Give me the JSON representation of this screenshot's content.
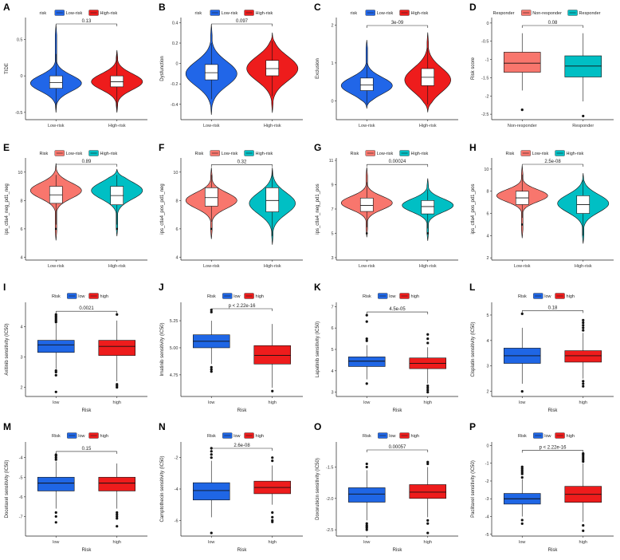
{
  "chart_data": [
    {
      "panel": "A",
      "type": "violin",
      "legend": {
        "title": "risk",
        "entries": [
          "Low-risk",
          "High-risk"
        ],
        "colors": [
          "#2166e8",
          "#ee1c1c"
        ]
      },
      "ylabel": "TIDE",
      "xlabel": "",
      "categories": [
        "Low-risk",
        "High-risk"
      ],
      "ylim": [
        -0.6,
        0.8
      ],
      "yticks": [
        -0.5,
        0,
        0.5
      ],
      "pvalue": "0.13",
      "box_style": "white",
      "groups": [
        {
          "q1": -0.17,
          "med": -0.09,
          "q3": 0.0,
          "wmin": -0.45,
          "wmax": 0.3,
          "vmin": -0.5,
          "vmax": 0.7,
          "mode": -0.1,
          "wid": 1.0,
          "sd": 0.11
        },
        {
          "q1": -0.15,
          "med": -0.08,
          "q3": 0.0,
          "wmin": -0.45,
          "wmax": 0.3,
          "vmin": -0.5,
          "vmax": 0.35,
          "mode": -0.08,
          "wid": 1.0,
          "sd": 0.11
        }
      ]
    },
    {
      "panel": "B",
      "type": "violin",
      "legend": {
        "title": "risk",
        "entries": [
          "Low-risk",
          "High-risk"
        ],
        "colors": [
          "#2166e8",
          "#ee1c1c"
        ]
      },
      "ylabel": "Dysfunction",
      "xlabel": "",
      "categories": [
        "Low-risk",
        "High-risk"
      ],
      "ylim": [
        -0.55,
        0.45
      ],
      "yticks": [
        -0.4,
        -0.2,
        0,
        0.2,
        0.4
      ],
      "pvalue": "0.097",
      "box_style": "white",
      "groups": [
        {
          "q1": -0.16,
          "med": -0.09,
          "q3": -0.01,
          "wmin": -0.35,
          "wmax": 0.2,
          "vmin": -0.5,
          "vmax": 0.38,
          "mode": -0.1,
          "wid": 1.0,
          "sd": 0.12
        },
        {
          "q1": -0.12,
          "med": -0.05,
          "q3": 0.03,
          "wmin": -0.32,
          "wmax": 0.22,
          "vmin": -0.48,
          "vmax": 0.3,
          "mode": -0.05,
          "wid": 1.0,
          "sd": 0.12
        }
      ]
    },
    {
      "panel": "C",
      "type": "violin",
      "legend": {
        "title": "risk",
        "entries": [
          "Low-risk",
          "High-risk"
        ],
        "colors": [
          "#2166e8",
          "#ee1c1c"
        ]
      },
      "ylabel": "Exclusion",
      "xlabel": "",
      "categories": [
        "Low-risk",
        "High-risk"
      ],
      "ylim": [
        -0.5,
        2.2
      ],
      "yticks": [
        0,
        1,
        2
      ],
      "pvalue": "3e-09",
      "box_style": "white",
      "groups": [
        {
          "q1": 0.27,
          "med": 0.42,
          "q3": 0.6,
          "wmin": -0.1,
          "wmax": 1.0,
          "vmin": -0.2,
          "vmax": 1.6,
          "mode": 0.4,
          "wid": 1.0,
          "sd": 0.22
        },
        {
          "q1": 0.4,
          "med": 0.62,
          "q3": 0.85,
          "wmin": -0.1,
          "wmax": 1.4,
          "vmin": -0.3,
          "vmax": 1.8,
          "mode": 0.55,
          "wid": 0.9,
          "sd": 0.32
        }
      ]
    },
    {
      "panel": "D",
      "type": "box",
      "legend": {
        "title": "Responder",
        "entries": [
          "Non-responder",
          "Responder"
        ],
        "colors": [
          "#f8766d",
          "#00bfc4"
        ]
      },
      "ylabel": "Risk score",
      "xlabel": "",
      "categories": [
        "Non-responder",
        "Responder"
      ],
      "ylim": [
        -2.65,
        0.15
      ],
      "yticks": [
        0,
        -0.5,
        -1,
        -1.5,
        -2,
        -2.5
      ],
      "pvalue": "0.08",
      "groups": [
        {
          "q1": -1.35,
          "med": -1.1,
          "q3": -0.8,
          "wmin": -1.85,
          "wmax": -0.28,
          "outliers": [
            -2.38
          ]
        },
        {
          "q1": -1.48,
          "med": -1.18,
          "q3": -0.9,
          "wmin": -2.15,
          "wmax": -0.28,
          "outliers": [
            -2.55
          ]
        }
      ]
    },
    {
      "panel": "E",
      "type": "violin",
      "legend": {
        "title": "Risk",
        "entries": [
          "Low-risk",
          "High-risk"
        ],
        "colors": [
          "#f8766d",
          "#00bfc4"
        ]
      },
      "ylabel": "ips_ctla4_neg_pd1_neg",
      "xlabel": "",
      "categories": [
        "Low-risk",
        "High-risk"
      ],
      "ylim": [
        3.8,
        11
      ],
      "yticks": [
        4,
        6,
        8,
        10
      ],
      "pvalue": "0.89",
      "box_style": "white",
      "groups": [
        {
          "q1": 7.8,
          "med": 8.4,
          "q3": 9.0,
          "wmin": 6.3,
          "wmax": 9.8,
          "vmin": 5.2,
          "vmax": 10.6,
          "mode": 8.7,
          "wid": 1.0,
          "sd": 0.55,
          "outliers": [
            6.0
          ]
        },
        {
          "q1": 7.7,
          "med": 8.35,
          "q3": 9.0,
          "wmin": 6.3,
          "wmax": 9.8,
          "vmin": 5.5,
          "vmax": 10.2,
          "mode": 8.7,
          "wid": 1.0,
          "sd": 0.6,
          "outliers": [
            6.0
          ]
        }
      ]
    },
    {
      "panel": "F",
      "type": "violin",
      "legend": {
        "title": "Risk",
        "entries": [
          "Low-risk",
          "High-risk"
        ],
        "colors": [
          "#f8766d",
          "#00bfc4"
        ]
      },
      "ylabel": "ips_ctla4_pos_pd1_neg",
      "xlabel": "",
      "categories": [
        "Low-risk",
        "High-risk"
      ],
      "ylim": [
        3.8,
        11
      ],
      "yticks": [
        4,
        6,
        8,
        10
      ],
      "pvalue": "0.32",
      "box_style": "white",
      "groups": [
        {
          "q1": 7.6,
          "med": 8.2,
          "q3": 8.9,
          "wmin": 6.5,
          "wmax": 9.8,
          "vmin": 5.3,
          "vmax": 10.3,
          "mode": 8.0,
          "wid": 1.0,
          "sd": 0.55,
          "outliers": [
            6.0
          ]
        },
        {
          "q1": 7.2,
          "med": 8.0,
          "q3": 8.9,
          "wmin": 5.5,
          "wmax": 10.2,
          "vmin": 4.9,
          "vmax": 10.3,
          "mode": 7.8,
          "wid": 0.9,
          "sd": 0.75
        }
      ]
    },
    {
      "panel": "G",
      "type": "violin",
      "legend": {
        "title": "Risk",
        "entries": [
          "Low-risk",
          "High-risk"
        ],
        "colors": [
          "#f8766d",
          "#00bfc4"
        ]
      },
      "ylabel": "ips_ctla4_neg_pd1_pos",
      "xlabel": "",
      "categories": [
        "Low-risk",
        "High-risk"
      ],
      "ylim": [
        2.8,
        11.2
      ],
      "yticks": [
        3,
        5,
        7,
        9,
        11
      ],
      "pvalue": "0.00024",
      "box_style": "white",
      "groups": [
        {
          "q1": 6.8,
          "med": 7.3,
          "q3": 7.9,
          "wmin": 5.5,
          "wmax": 9.2,
          "vmin": 4.7,
          "vmax": 10.4,
          "mode": 7.5,
          "wid": 1.0,
          "sd": 0.55,
          "outliers": [
            5.0
          ]
        },
        {
          "q1": 6.6,
          "med": 7.2,
          "q3": 7.7,
          "wmin": 5.4,
          "wmax": 8.6,
          "vmin": 4.4,
          "vmax": 9.5,
          "mode": 7.3,
          "wid": 1.0,
          "sd": 0.55,
          "outliers": [
            5.0
          ]
        }
      ]
    },
    {
      "panel": "H",
      "type": "violin",
      "legend": {
        "title": "Risk",
        "entries": [
          "Low-risk",
          "High-risk"
        ],
        "colors": [
          "#f8766d",
          "#00bfc4"
        ]
      },
      "ylabel": "ips_ctla4_pos_pd1_pos",
      "xlabel": "",
      "categories": [
        "Low-risk",
        "High-risk"
      ],
      "ylim": [
        1.8,
        11
      ],
      "yticks": [
        2,
        4,
        6,
        8,
        10
      ],
      "pvalue": "2.5e-08",
      "box_style": "white",
      "groups": [
        {
          "q1": 6.8,
          "med": 7.4,
          "q3": 8.0,
          "wmin": 5.6,
          "wmax": 9.5,
          "vmin": 3.8,
          "vmax": 10.3,
          "mode": 7.6,
          "wid": 1.0,
          "sd": 0.55,
          "outliers": [
            5.0
          ]
        },
        {
          "q1": 6.0,
          "med": 6.8,
          "q3": 7.6,
          "wmin": 4.0,
          "wmax": 9.0,
          "vmin": 3.3,
          "vmax": 9.6,
          "mode": 6.9,
          "wid": 1.0,
          "sd": 0.8
        }
      ]
    },
    {
      "panel": "I",
      "type": "box",
      "legend": {
        "title": "Risk",
        "entries": [
          "low",
          "high"
        ],
        "colors": [
          "#1f66e5",
          "#ee1c1c"
        ]
      },
      "ylabel": "Axitinib sensitivity (IC50)",
      "xlabel": "Risk",
      "categories": [
        "low",
        "high"
      ],
      "ylim": [
        1.7,
        4.8
      ],
      "yticks": [
        2,
        3,
        4
      ],
      "pvalue": "0.0021",
      "groups": [
        {
          "q1": 3.15,
          "med": 3.4,
          "q3": 3.55,
          "wmin": 2.6,
          "wmax": 4.1,
          "outliers": [
            4.15,
            4.2,
            4.25,
            4.3,
            4.35,
            4.4,
            2.55,
            2.5,
            2.4,
            1.85
          ]
        },
        {
          "q1": 3.05,
          "med": 3.35,
          "q3": 3.55,
          "wmin": 2.2,
          "wmax": 4.2,
          "outliers": [
            2.1,
            2.05,
            2.0,
            4.4
          ]
        }
      ]
    },
    {
      "panel": "J",
      "type": "box",
      "legend": {
        "title": "Risk",
        "entries": [
          "low",
          "high"
        ],
        "colors": [
          "#1f66e5",
          "#ee1c1c"
        ]
      },
      "ylabel": "Imatinib sensitivity (IC50)",
      "xlabel": "Risk",
      "categories": [
        "low",
        "high"
      ],
      "ylim": [
        4.55,
        5.42
      ],
      "yticks": [
        4.75,
        5.0,
        5.25
      ],
      "ytick_labels": [
        "4.75",
        "5.00",
        "5.25"
      ],
      "pvalue": "p < 2.22e-16",
      "groups": [
        {
          "q1": 5.0,
          "med": 5.06,
          "q3": 5.12,
          "wmin": 4.85,
          "wmax": 5.25,
          "outliers": [
            4.82,
            4.8,
            4.78,
            5.33,
            5.35
          ]
        },
        {
          "q1": 4.85,
          "med": 4.93,
          "q3": 5.02,
          "wmin": 4.63,
          "wmax": 5.22,
          "outliers": [
            4.6
          ]
        }
      ]
    },
    {
      "panel": "K",
      "type": "box",
      "legend": {
        "title": "Risk",
        "entries": [
          "low",
          "high"
        ],
        "colors": [
          "#1f66e5",
          "#ee1c1c"
        ]
      },
      "ylabel": "Lapatinib sensitivity (IC50)",
      "xlabel": "Risk",
      "categories": [
        "low",
        "high"
      ],
      "ylim": [
        2.8,
        7.2
      ],
      "yticks": [
        3,
        4,
        5,
        6,
        7
      ],
      "pvalue": "4.5e-05",
      "groups": [
        {
          "q1": 4.2,
          "med": 4.45,
          "q3": 4.65,
          "wmin": 3.6,
          "wmax": 5.2,
          "outliers": [
            5.4,
            5.5,
            6.3,
            6.6,
            3.4
          ]
        },
        {
          "q1": 4.1,
          "med": 4.35,
          "q3": 4.6,
          "wmin": 3.4,
          "wmax": 5.1,
          "outliers": [
            3.3,
            3.2,
            3.1,
            3.0,
            5.3,
            5.5,
            5.7
          ]
        }
      ]
    },
    {
      "panel": "L",
      "type": "box",
      "legend": {
        "title": "Risk",
        "entries": [
          "low",
          "high"
        ],
        "colors": [
          "#1f66e5",
          "#ee1c1c"
        ]
      },
      "ylabel": "Cisplatin sensitivity (IC50)",
      "xlabel": "Risk",
      "categories": [
        "low",
        "high"
      ],
      "ylim": [
        1.8,
        5.5
      ],
      "yticks": [
        2,
        3,
        4,
        5
      ],
      "pvalue": "0.18",
      "groups": [
        {
          "q1": 3.1,
          "med": 3.4,
          "q3": 3.7,
          "wmin": 2.3,
          "wmax": 4.5,
          "outliers": [
            5.05,
            2.0
          ]
        },
        {
          "q1": 3.15,
          "med": 3.4,
          "q3": 3.6,
          "wmin": 2.5,
          "wmax": 4.3,
          "outliers": [
            4.4,
            4.5,
            4.6,
            4.7,
            4.8,
            2.4,
            2.3,
            2.2
          ]
        }
      ]
    },
    {
      "panel": "M",
      "type": "box",
      "legend": {
        "title": "Risk",
        "entries": [
          "low",
          "high"
        ],
        "colors": [
          "#1f66e5",
          "#ee1c1c"
        ]
      },
      "ylabel": "Docetaxel sensitivity (IC50)",
      "xlabel": "Risk",
      "categories": [
        "low",
        "high"
      ],
      "ylim": [
        -8.0,
        -3.2
      ],
      "yticks": [
        -4,
        -5,
        -6,
        -7
      ],
      "pvalue": "0.15",
      "groups": [
        {
          "q1": -5.7,
          "med": -5.3,
          "q3": -5.0,
          "wmin": -6.6,
          "wmax": -4.2,
          "outliers": [
            -4.1,
            -4.0,
            -3.9,
            -3.85,
            -6.8,
            -7.0,
            -7.3
          ]
        },
        {
          "q1": -5.7,
          "med": -5.3,
          "q3": -5.0,
          "wmin": -6.6,
          "wmax": -4.3,
          "outliers": [
            -6.8,
            -6.9,
            -7.0,
            -7.1,
            -7.5
          ]
        }
      ]
    },
    {
      "panel": "N",
      "type": "box",
      "legend": {
        "title": "Risk",
        "entries": [
          "low",
          "high"
        ],
        "colors": [
          "#1f66e5",
          "#ee1c1c"
        ]
      },
      "ylabel": "Camptothecin sensitivity (IC50)",
      "xlabel": "Risk",
      "categories": [
        "low",
        "high"
      ],
      "ylim": [
        -7.0,
        -1.0
      ],
      "yticks": [
        -2,
        -4,
        -6
      ],
      "pvalue": "2.6e-08",
      "groups": [
        {
          "q1": -4.7,
          "med": -4.1,
          "q3": -3.6,
          "wmin": -5.8,
          "wmax": -2.2,
          "outliers": [
            -2.0,
            -1.8,
            -1.6,
            -1.4,
            -6.8
          ]
        },
        {
          "q1": -4.3,
          "med": -3.9,
          "q3": -3.5,
          "wmin": -5.0,
          "wmax": -2.5,
          "outliers": [
            -2.2,
            -2.0,
            -5.5,
            -5.8,
            -6.0,
            -6.1
          ]
        }
      ]
    },
    {
      "panel": "O",
      "type": "box",
      "legend": {
        "title": "Risk",
        "entries": [
          "low",
          "high"
        ],
        "colors": [
          "#1f66e5",
          "#ee1c1c"
        ]
      },
      "ylabel": "Doxorubicin sensitivity (IC50)",
      "xlabel": "Risk",
      "categories": [
        "low",
        "high"
      ],
      "ylim": [
        -2.6,
        -1.1
      ],
      "yticks": [
        -1.5,
        -2.0,
        -2.5
      ],
      "ytick_labels": [
        "-1.5",
        "-2.0",
        "-2.5"
      ],
      "pvalue": "0.00057",
      "groups": [
        {
          "q1": -2.06,
          "med": -1.93,
          "q3": -1.83,
          "wmin": -2.35,
          "wmax": -1.55,
          "outliers": [
            -1.5,
            -1.45,
            -2.4,
            -2.43,
            -2.45,
            -2.47,
            -2.5
          ]
        },
        {
          "q1": -2.0,
          "med": -1.9,
          "q3": -1.78,
          "wmin": -2.3,
          "wmax": -1.5,
          "outliers": [
            -1.45,
            -1.42,
            -2.35,
            -2.4,
            -2.55
          ]
        }
      ]
    },
    {
      "panel": "P",
      "type": "box",
      "legend": {
        "title": "Risk",
        "entries": [
          "low",
          "high"
        ],
        "colors": [
          "#1f66e5",
          "#ee1c1c"
        ]
      },
      "ylabel": "Paclitaxel sensitivity (IC50)",
      "xlabel": "Risk",
      "categories": [
        "low",
        "high"
      ],
      "ylim": [
        -5.1,
        0.2
      ],
      "yticks": [
        0,
        -1,
        -2,
        -3,
        -4,
        -5
      ],
      "pvalue": "p < 2.22e-16",
      "groups": [
        {
          "q1": -3.3,
          "med": -3.0,
          "q3": -2.7,
          "wmin": -4.0,
          "wmax": -1.9,
          "outliers": [
            -1.8,
            -1.6,
            -1.5,
            -1.4,
            -1.3,
            -1.2,
            -4.2,
            -4.4
          ]
        },
        {
          "q1": -3.2,
          "med": -2.75,
          "q3": -2.3,
          "wmin": -4.3,
          "wmax": -1.0,
          "outliers": [
            -0.9,
            -0.8,
            -0.7,
            -0.6,
            -0.5,
            -0.45,
            -4.5,
            -4.8
          ]
        }
      ]
    }
  ]
}
